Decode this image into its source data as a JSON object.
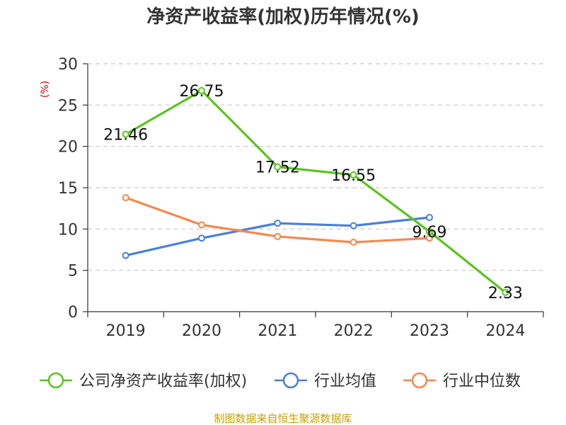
{
  "chart_data": {
    "type": "line",
    "title": "净资产收益率(加权)历年情况(%)",
    "ylabel": "(%)",
    "xlabel": "",
    "categories": [
      "2019",
      "2020",
      "2021",
      "2022",
      "2023",
      "2024"
    ],
    "ylim": [
      0,
      30
    ],
    "yticks": [
      0,
      5,
      10,
      15,
      20,
      25,
      30
    ],
    "grid": true,
    "legend_position": "bottom",
    "series": [
      {
        "name": "公司净资产收益率(加权)",
        "color": "#5ac41e",
        "values": [
          21.46,
          26.75,
          17.52,
          16.55,
          9.69,
          2.33
        ],
        "labels": [
          "21.46",
          "26.75",
          "17.52",
          "16.55",
          "9.69",
          "2.33"
        ]
      },
      {
        "name": "行业均值",
        "color": "#4a7fd6",
        "values": [
          6.8,
          8.9,
          10.7,
          10.4,
          11.4,
          null
        ]
      },
      {
        "name": "行业中位数",
        "color": "#f5884f",
        "values": [
          13.8,
          10.5,
          9.1,
          8.4,
          8.9,
          null
        ]
      }
    ],
    "source": "制图数据来自恒生聚源数据库"
  }
}
